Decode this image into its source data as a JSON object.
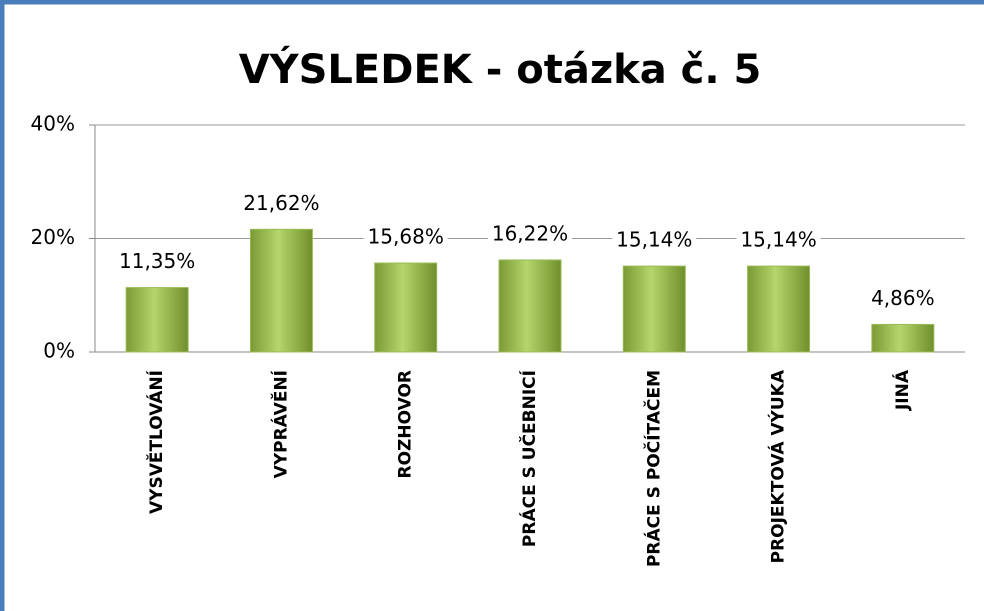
{
  "chart_data": {
    "type": "bar",
    "title": "VÝSLEDEK - otázka č. 5",
    "categories": [
      "VYSVĚTLOVÁNÍ",
      "VYPRÁVĚNÍ",
      "ROZHOVOR",
      "PRÁCE S UČEBNICÍ",
      "PRÁCE S POČÍTAČEM",
      "PROJEKTOVÁ VÝUKA",
      "JINÁ"
    ],
    "values": [
      11.35,
      21.62,
      15.68,
      16.22,
      15.14,
      15.14,
      4.86
    ],
    "value_labels": [
      "11,35%",
      "21,62%",
      "15,68%",
      "16,22%",
      "15,14%",
      "15,14%",
      "4,86%"
    ],
    "color": "#9bbb59",
    "ylim": [
      0,
      40
    ],
    "yticks": [
      {
        "value": 0,
        "label": "0%"
      },
      {
        "value": 20,
        "label": "20%"
      },
      {
        "value": 40,
        "label": "40%"
      }
    ],
    "grid": true
  }
}
